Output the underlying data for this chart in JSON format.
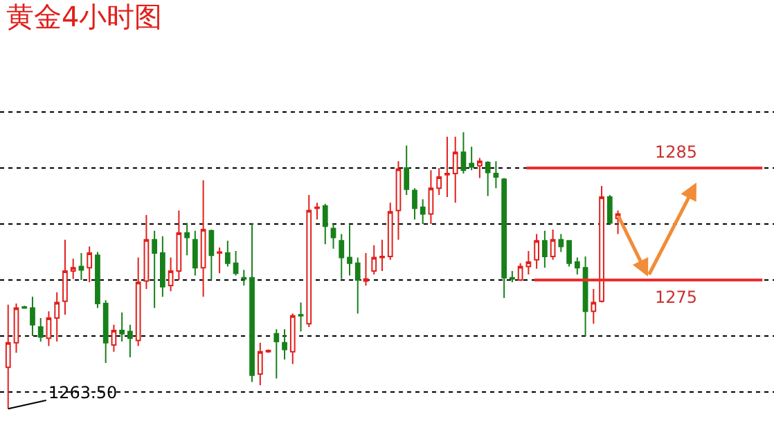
{
  "chart_data": {
    "type": "candlestick",
    "title": "黄金4小时图",
    "categories": [
      null,
      null,
      null,
      null,
      null,
      null,
      null,
      null,
      null,
      null,
      null,
      null,
      null,
      null,
      null,
      null,
      null,
      null,
      null,
      null,
      null,
      null,
      null,
      null,
      null,
      null,
      null,
      null,
      null,
      null,
      null,
      null,
      null,
      null,
      null,
      null,
      null,
      null,
      null,
      null,
      null,
      null,
      null,
      null,
      null,
      null,
      null,
      null,
      null,
      null,
      null,
      null,
      null,
      null,
      null,
      null,
      null,
      null,
      null,
      null,
      null,
      null,
      null,
      null,
      null,
      null,
      null,
      null,
      null,
      null,
      null,
      null,
      null,
      null,
      null,
      null
    ],
    "ohlc": [
      [
        1267.2,
        1272.8,
        1263.5,
        1269.4
      ],
      [
        1269.4,
        1272.9,
        1268.5,
        1272.5
      ],
      [
        1272.6,
        1272.7,
        1272.5,
        1272.5
      ],
      [
        1272.5,
        1273.5,
        1270.0,
        1271.0
      ],
      [
        1270.8,
        1271.6,
        1269.5,
        1269.9
      ],
      [
        1269.8,
        1272.2,
        1269.1,
        1271.6
      ],
      [
        1271.6,
        1273.9,
        1269.5,
        1273.0
      ],
      [
        1273.1,
        1278.6,
        1271.9,
        1275.8
      ],
      [
        1275.8,
        1276.9,
        1275.1,
        1276.1
      ],
      [
        1276.2,
        1277.4,
        1275.0,
        1275.9
      ],
      [
        1276.1,
        1278.0,
        1274.8,
        1277.4
      ],
      [
        1277.2,
        1277.5,
        1272.5,
        1272.9
      ],
      [
        1272.9,
        1273.2,
        1267.6,
        1269.4
      ],
      [
        1269.2,
        1271.0,
        1268.6,
        1270.5
      ],
      [
        1270.5,
        1272.1,
        1269.5,
        1270.2
      ],
      [
        1270.4,
        1271.0,
        1268.1,
        1269.8
      ],
      [
        1269.6,
        1277.0,
        1269.1,
        1274.8
      ],
      [
        1274.9,
        1280.8,
        1274.2,
        1278.6
      ],
      [
        1278.6,
        1279.4,
        1272.5,
        1277.4
      ],
      [
        1277.4,
        1278.9,
        1273.5,
        1274.4
      ],
      [
        1274.5,
        1277.0,
        1274.0,
        1275.8
      ],
      [
        1275.8,
        1281.2,
        1275.0,
        1279.2
      ],
      [
        1279.2,
        1280.1,
        1277.2,
        1278.8
      ],
      [
        1278.6,
        1279.4,
        1275.4,
        1276.1
      ],
      [
        1276.1,
        1283.9,
        1273.5,
        1279.5
      ],
      [
        1279.4,
        1279.5,
        1275.0,
        1277.2
      ],
      [
        1277.4,
        1277.9,
        1275.6,
        1277.5
      ],
      [
        1277.4,
        1278.5,
        1276.2,
        1276.5
      ],
      [
        1276.5,
        1277.6,
        1275.4,
        1275.6
      ],
      [
        1275.2,
        1275.9,
        1274.5,
        1275.1
      ],
      [
        1275.2,
        1280.1,
        1265.9,
        1266.5
      ],
      [
        1266.6,
        1269.4,
        1265.6,
        1268.6
      ],
      [
        1268.6,
        1268.8,
        1268.5,
        1268.7
      ],
      [
        1270.2,
        1270.6,
        1266.2,
        1269.5
      ],
      [
        1269.4,
        1270.6,
        1267.9,
        1268.8
      ],
      [
        1268.6,
        1272.0,
        1267.5,
        1271.8
      ],
      [
        1271.9,
        1273.0,
        1270.4,
        1271.8
      ],
      [
        1271.1,
        1282.6,
        1270.8,
        1281.2
      ],
      [
        1281.4,
        1281.9,
        1280.4,
        1281.5
      ],
      [
        1281.6,
        1281.8,
        1278.2,
        1279.8
      ],
      [
        1279.6,
        1280.0,
        1277.8,
        1278.8
      ],
      [
        1278.5,
        1279.1,
        1275.1,
        1277.0
      ],
      [
        1277.0,
        1279.9,
        1275.4,
        1276.5
      ],
      [
        1276.5,
        1277.0,
        1272.0,
        1275.0
      ],
      [
        1274.9,
        1277.4,
        1274.5,
        1275.1
      ],
      [
        1275.8,
        1278.1,
        1275.5,
        1277.0
      ],
      [
        1277.0,
        1278.6,
        1275.8,
        1277.1
      ],
      [
        1277.1,
        1281.9,
        1276.8,
        1281.1
      ],
      [
        1281.2,
        1285.6,
        1278.6,
        1284.9
      ],
      [
        1285.0,
        1287.0,
        1282.6,
        1283.1
      ],
      [
        1283.0,
        1283.2,
        1280.4,
        1281.4
      ],
      [
        1281.5,
        1282.2,
        1280.0,
        1280.9
      ],
      [
        1280.9,
        1284.8,
        1280.0,
        1283.2
      ],
      [
        1283.2,
        1285.0,
        1282.6,
        1284.2
      ],
      [
        1284.4,
        1287.8,
        1282.4,
        1284.5
      ],
      [
        1284.5,
        1287.8,
        1281.9,
        1286.4
      ],
      [
        1286.4,
        1288.2,
        1284.5,
        1284.8
      ],
      [
        1285.4,
        1286.9,
        1284.8,
        1285.1
      ],
      [
        1285.2,
        1285.9,
        1284.1,
        1285.6
      ],
      [
        1285.5,
        1285.6,
        1282.5,
        1284.6
      ],
      [
        1284.5,
        1285.6,
        1283.2,
        1284.2
      ],
      [
        1284.0,
        1284.1,
        1273.4,
        1275.2
      ],
      [
        1275.2,
        1275.8,
        1274.8,
        1275.1
      ],
      [
        1275.0,
        1276.5,
        1274.9,
        1276.2
      ],
      [
        1276.2,
        1277.6,
        1275.5,
        1276.6
      ],
      [
        1276.8,
        1279.1,
        1276.0,
        1278.5
      ],
      [
        1278.5,
        1279.4,
        1276.1,
        1277.1
      ],
      [
        1277.1,
        1279.5,
        1276.8,
        1278.6
      ],
      [
        1278.6,
        1279.1,
        1277.5,
        1278.0
      ],
      [
        1278.5,
        1278.5,
        1276.2,
        1276.5
      ],
      [
        1276.6,
        1277.0,
        1275.5,
        1276.1
      ],
      [
        1276.1,
        1277.1,
        1270.0,
        1272.2
      ],
      [
        1272.2,
        1274.2,
        1271.1,
        1273.0
      ],
      [
        1273.1,
        1283.4,
        1273.0,
        1282.4
      ],
      [
        1282.4,
        1282.6,
        1280.0,
        1280.1
      ],
      [
        1280.5,
        1281.2,
        1279.1,
        1280.9
      ]
    ],
    "ylim": [
      1260,
      1300
    ],
    "yticks": [
      {
        "value": 1265,
        "label": null
      },
      {
        "value": 1270,
        "label": null
      },
      {
        "value": 1275,
        "label": null
      },
      {
        "value": 1280,
        "label": null
      },
      {
        "value": 1285,
        "label": null
      },
      {
        "value": 1290,
        "label": null
      }
    ],
    "grid": "y",
    "legend": false,
    "ref_lines": [
      {
        "axis": "y",
        "value": 1285,
        "label": "1285",
        "color": "#ee2b2b"
      },
      {
        "axis": "y",
        "value": 1275,
        "label": "1275",
        "color": "#ee2b2b"
      }
    ],
    "annotations": [
      "1263.50"
    ]
  }
}
